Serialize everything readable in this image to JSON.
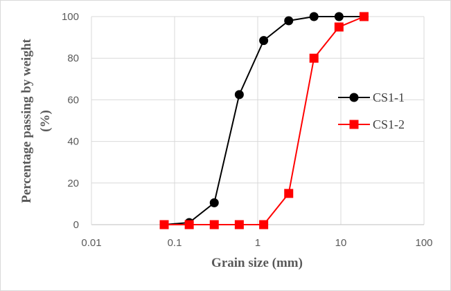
{
  "chart_data": {
    "type": "line",
    "xlabel": "Grain size (mm)",
    "ylabel": [
      "Percentage passing by weight",
      "(%)"
    ],
    "x_scale": "log",
    "xlim": [
      0.01,
      100
    ],
    "ylim": [
      0,
      100
    ],
    "x_ticks": [
      0.01,
      0.1,
      1,
      10,
      100
    ],
    "x_tick_labels": [
      "0.01",
      "0.1",
      "1",
      "10",
      "100"
    ],
    "y_ticks": [
      0,
      20,
      40,
      60,
      80,
      100
    ],
    "y_tick_labels": [
      "0",
      "20",
      "40",
      "60",
      "80",
      "100"
    ],
    "grid": "major, both axes",
    "legend_position": "right",
    "series": [
      {
        "name": "CS1-1",
        "color": "#000000",
        "marker": "circle",
        "points": [
          [
            0.075,
            0
          ],
          [
            0.15,
            1
          ],
          [
            0.3,
            10.5
          ],
          [
            0.6,
            62.5
          ],
          [
            1.18,
            88.5
          ],
          [
            2.36,
            98
          ],
          [
            4.75,
            100
          ],
          [
            9.5,
            100
          ],
          [
            19,
            100
          ]
        ]
      },
      {
        "name": "CS1-2",
        "color": "#ff0000",
        "marker": "square",
        "points": [
          [
            0.075,
            0
          ],
          [
            0.15,
            0
          ],
          [
            0.3,
            0
          ],
          [
            0.6,
            0
          ],
          [
            1.18,
            0
          ],
          [
            2.36,
            15
          ],
          [
            4.75,
            80
          ],
          [
            9.5,
            95
          ],
          [
            19,
            100
          ]
        ]
      }
    ]
  }
}
